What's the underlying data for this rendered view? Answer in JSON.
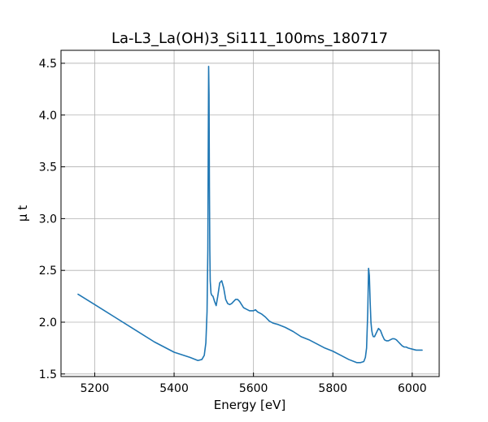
{
  "chart_data": {
    "type": "line",
    "title": "La-L3_La(OH)3_Si111_100ms_180717",
    "xlabel": "Energy [eV]",
    "ylabel": "μ t",
    "xlim": [
      5115,
      6068
    ],
    "ylim": [
      1.475,
      4.625
    ],
    "x_ticks": [
      5200,
      5400,
      5600,
      5800,
      6000
    ],
    "y_ticks": [
      1.5,
      2.0,
      2.5,
      3.0,
      3.5,
      4.0,
      4.5
    ],
    "x_tick_labels": [
      "5200",
      "5400",
      "5600",
      "5800",
      "6000"
    ],
    "y_tick_labels": [
      "1.5",
      "2.0",
      "2.5",
      "3.0",
      "3.5",
      "4.0",
      "4.5"
    ],
    "grid": true,
    "tick_direction": "in",
    "series": [
      {
        "color": "#1f77b4",
        "x": [
          5158,
          5200,
          5250,
          5300,
          5350,
          5400,
          5440,
          5460,
          5470,
          5476,
          5480,
          5483,
          5485,
          5486,
          5487,
          5488,
          5489,
          5490,
          5491,
          5493,
          5495,
          5498,
          5502,
          5506,
          5510,
          5515,
          5520,
          5525,
          5530,
          5535,
          5540,
          5545,
          5550,
          5555,
          5560,
          5565,
          5570,
          5575,
          5580,
          5585,
          5590,
          5595,
          5600,
          5605,
          5610,
          5620,
          5630,
          5640,
          5650,
          5660,
          5680,
          5700,
          5720,
          5740,
          5760,
          5780,
          5800,
          5820,
          5840,
          5860,
          5870,
          5878,
          5882,
          5885,
          5888,
          5890,
          5892,
          5894,
          5896,
          5898,
          5900,
          5902,
          5905,
          5910,
          5915,
          5920,
          5925,
          5930,
          5935,
          5940,
          5945,
          5950,
          5955,
          5960,
          5965,
          5970,
          5975,
          5980,
          5985,
          5990,
          6000,
          6010,
          6025
        ],
        "values": [
          2.27,
          2.17,
          2.05,
          1.93,
          1.81,
          1.71,
          1.66,
          1.63,
          1.64,
          1.68,
          1.8,
          2.1,
          2.7,
          3.6,
          4.47,
          4.2,
          3.3,
          2.7,
          2.4,
          2.28,
          2.26,
          2.25,
          2.2,
          2.16,
          2.25,
          2.38,
          2.4,
          2.33,
          2.22,
          2.18,
          2.17,
          2.18,
          2.2,
          2.22,
          2.22,
          2.2,
          2.17,
          2.14,
          2.13,
          2.12,
          2.11,
          2.11,
          2.11,
          2.12,
          2.1,
          2.08,
          2.05,
          2.01,
          1.99,
          1.98,
          1.95,
          1.91,
          1.86,
          1.83,
          1.79,
          1.75,
          1.72,
          1.68,
          1.64,
          1.61,
          1.61,
          1.62,
          1.66,
          1.75,
          2.1,
          2.52,
          2.45,
          2.2,
          2.0,
          1.92,
          1.88,
          1.86,
          1.86,
          1.9,
          1.94,
          1.92,
          1.87,
          1.83,
          1.82,
          1.82,
          1.83,
          1.84,
          1.84,
          1.83,
          1.81,
          1.79,
          1.77,
          1.76,
          1.76,
          1.75,
          1.74,
          1.73,
          1.73
        ]
      }
    ]
  }
}
